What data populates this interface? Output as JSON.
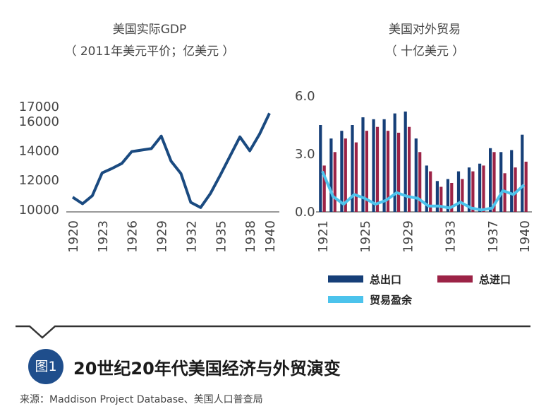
{
  "colors": {
    "gdp_line": "#1a4a80",
    "exports": "#163f78",
    "imports": "#9c2346",
    "balance": "#4cc3ec",
    "badge": "#1f4e8c",
    "divider": "#333333"
  },
  "figure": {
    "badge": "图1",
    "title": "20世纪20年代美国经济与外贸演变",
    "source": "来源：Maddison Project Database、美国人口普查局"
  },
  "chart_data": [
    {
      "type": "line",
      "title": "美国实际GDP",
      "subtitle": "（ 2011年美元平价；亿美元 ）",
      "x": [
        1920,
        1921,
        1922,
        1923,
        1924,
        1925,
        1926,
        1927,
        1928,
        1929,
        1930,
        1931,
        1932,
        1933,
        1934,
        1935,
        1936,
        1937,
        1938,
        1939,
        1940
      ],
      "values": [
        10800,
        10350,
        10900,
        12450,
        12750,
        13100,
        13900,
        14000,
        14100,
        14950,
        13250,
        12400,
        10450,
        10100,
        11050,
        12300,
        13600,
        14900,
        13950,
        15100,
        16500
      ],
      "xticks": [
        "1920",
        "1923",
        "1926",
        "1929",
        "1932",
        "1935",
        "1938",
        "1940"
      ],
      "yticks": [
        "10000",
        "12000",
        "14000",
        "16000",
        "17000"
      ],
      "ylim": [
        9800,
        17000
      ]
    },
    {
      "type": "bar",
      "title": "美国对外贸易",
      "subtitle": "（ 十亿美元 ）",
      "x": [
        1921,
        1922,
        1923,
        1924,
        1925,
        1926,
        1927,
        1928,
        1929,
        1930,
        1931,
        1932,
        1933,
        1934,
        1935,
        1936,
        1937,
        1938,
        1939,
        1940
      ],
      "xticks": [
        "1921",
        "1925",
        "1929",
        "1933",
        "1937",
        "1940"
      ],
      "yticks": [
        "0.0",
        "3.0",
        "6.0"
      ],
      "ylim": [
        0,
        6.0
      ],
      "series": [
        {
          "name": "总出口",
          "type": "bar",
          "values": [
            4.5,
            3.8,
            4.2,
            4.5,
            4.9,
            4.8,
            4.8,
            5.1,
            5.2,
            3.8,
            2.4,
            1.6,
            1.7,
            2.1,
            2.3,
            2.5,
            3.3,
            3.1,
            3.2,
            4.0
          ]
        },
        {
          "name": "总进口",
          "type": "bar",
          "values": [
            2.4,
            3.1,
            3.8,
            3.6,
            4.2,
            4.4,
            4.2,
            4.1,
            4.4,
            3.1,
            2.1,
            1.3,
            1.5,
            1.7,
            2.1,
            2.4,
            3.1,
            2.0,
            2.3,
            2.6
          ]
        },
        {
          "name": "贸易盈余",
          "type": "line",
          "values": [
            2.1,
            0.8,
            0.4,
            0.9,
            0.7,
            0.4,
            0.6,
            1.0,
            0.8,
            0.7,
            0.3,
            0.3,
            0.2,
            0.5,
            0.2,
            0.1,
            0.2,
            1.1,
            0.9,
            1.4
          ]
        }
      ],
      "legend": [
        "总出口",
        "总进口",
        "贸易盈余"
      ]
    }
  ]
}
